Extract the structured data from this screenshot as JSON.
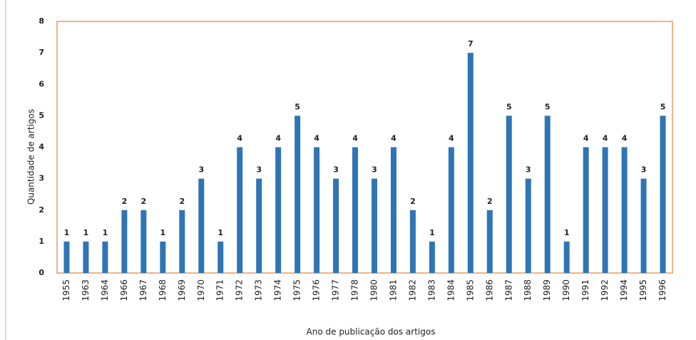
{
  "chart_data": {
    "type": "bar",
    "xlabel": "Ano de publicação dos artigos",
    "ylabel": "Quantidade de artigos",
    "categories": [
      "1955",
      "1963",
      "1964",
      "1966",
      "1967",
      "1968",
      "1969",
      "1970",
      "1971",
      "1972",
      "1973",
      "1974",
      "1975",
      "1976",
      "1977",
      "1978",
      "1980",
      "1981",
      "1982",
      "1983",
      "1984",
      "1985",
      "1986",
      "1987",
      "1988",
      "1989",
      "1990",
      "1991",
      "1992",
      "1994",
      "1995",
      "1996"
    ],
    "values": [
      1,
      1,
      1,
      2,
      2,
      1,
      2,
      3,
      1,
      4,
      3,
      4,
      5,
      4,
      3,
      4,
      3,
      4,
      2,
      1,
      4,
      7,
      2,
      5,
      3,
      5,
      1,
      4,
      4,
      4,
      3,
      5
    ],
    "color": "#2e75b6",
    "ylim": [
      0,
      8
    ],
    "yticks": [
      0,
      1,
      2,
      3,
      4,
      5,
      6,
      7,
      8
    ],
    "grid": false
  }
}
